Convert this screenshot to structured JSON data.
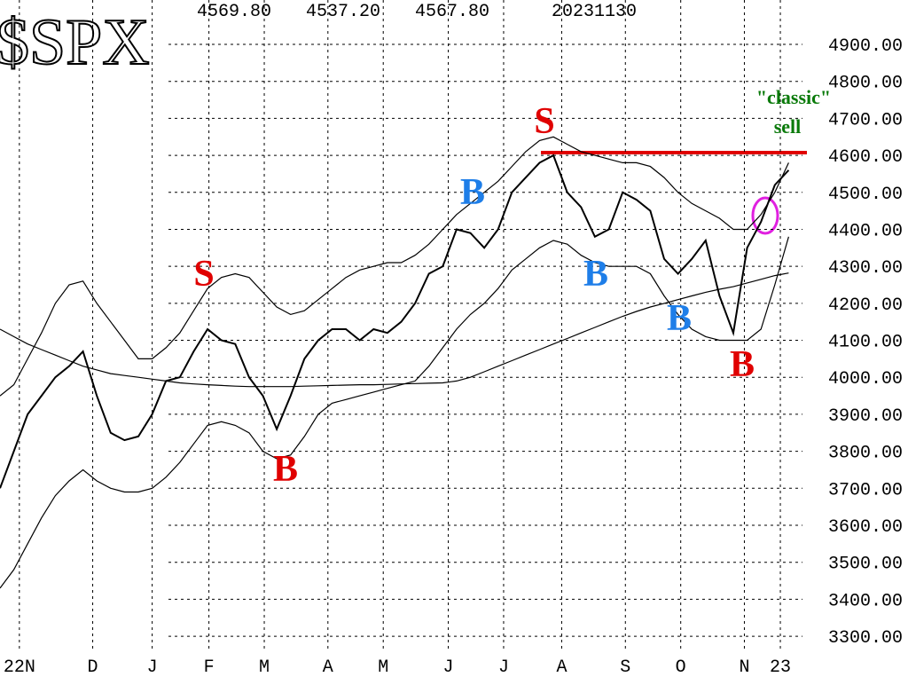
{
  "chart_data": {
    "type": "line",
    "title": "$SPX",
    "header": [
      "4569.80",
      "4537.20",
      "4567.80",
      "20231130"
    ],
    "xlim": [
      0,
      58
    ],
    "xticks": [
      {
        "value": 1.4,
        "label": "22N"
      },
      {
        "value": 6.7,
        "label": "D"
      },
      {
        "value": 11,
        "label": "J"
      },
      {
        "value": 15.1,
        "label": "F"
      },
      {
        "value": 19.1,
        "label": "M"
      },
      {
        "value": 23.7,
        "label": "A"
      },
      {
        "value": 27.7,
        "label": "M"
      },
      {
        "value": 32.4,
        "label": "J"
      },
      {
        "value": 36.4,
        "label": "J"
      },
      {
        "value": 40.6,
        "label": "A"
      },
      {
        "value": 45.2,
        "label": "S"
      },
      {
        "value": 49.2,
        "label": "O"
      },
      {
        "value": 53.8,
        "label": "N"
      },
      {
        "value": 56.4,
        "label": "23"
      }
    ],
    "ylim": [
      3245,
      5020
    ],
    "yticks": [
      {
        "value": 4900,
        "label": "4900.00"
      },
      {
        "value": 4800,
        "label": "4800.00"
      },
      {
        "value": 4700,
        "label": "4700.00"
      },
      {
        "value": 4600,
        "label": "4600.00"
      },
      {
        "value": 4500,
        "label": "4500.00"
      },
      {
        "value": 4400,
        "label": "4400.00"
      },
      {
        "value": 4300,
        "label": "4300.00"
      },
      {
        "value": 4200,
        "label": "4200.00"
      },
      {
        "value": 4100,
        "label": "4100.00"
      },
      {
        "value": 4000,
        "label": "4000.00"
      },
      {
        "value": 3900,
        "label": "3900.00"
      },
      {
        "value": 3800,
        "label": "3800.00"
      },
      {
        "value": 3700,
        "label": "3700.00"
      },
      {
        "value": 3600,
        "label": "3600.00"
      },
      {
        "value": 3500,
        "label": "3500.00"
      },
      {
        "value": 3400,
        "label": "3400.00"
      },
      {
        "value": 3300,
        "label": "3300.00"
      }
    ],
    "grid": true,
    "series": [
      {
        "color": "#000000",
        "values": [
          3700,
          3800,
          3900,
          3950,
          4000,
          4030,
          4070,
          3950,
          3850,
          3830,
          3840,
          3900,
          3990,
          4000,
          4070,
          4130,
          4100,
          4090,
          4000,
          3950,
          3860,
          3950,
          4050,
          4100,
          4130,
          4130,
          4100,
          4130,
          4120,
          4150,
          4200,
          4280,
          4300,
          4400,
          4390,
          4350,
          4400,
          4500,
          4540,
          4580,
          4600,
          4500,
          4460,
          4380,
          4400,
          4500,
          4480,
          4450,
          4320,
          4280,
          4320,
          4370,
          4220,
          4120,
          4350,
          4420,
          4520,
          4560
        ]
      },
      {
        "color": "#000000",
        "values": [
          4130,
          4110,
          4090,
          4075,
          4060,
          4045,
          4030,
          4020,
          4010,
          4005,
          4000,
          3995,
          3990,
          3985,
          3982,
          3980,
          3978,
          3976,
          3975,
          3975,
          3975,
          3975,
          3976,
          3977,
          3978,
          3979,
          3980,
          3980,
          3981,
          3982,
          3983,
          3984,
          3985,
          3990,
          4000,
          4015,
          4030,
          4045,
          4060,
          4075,
          4090,
          4105,
          4120,
          4135,
          4150,
          4165,
          4178,
          4190,
          4200,
          4210,
          4220,
          4230,
          4238,
          4245,
          4255,
          4265,
          4275,
          4282
        ]
      },
      {
        "color": "#000000",
        "values": [
          3950,
          3980,
          4050,
          4120,
          4200,
          4250,
          4260,
          4200,
          4150,
          4100,
          4050,
          4050,
          4080,
          4120,
          4180,
          4240,
          4270,
          4280,
          4270,
          4230,
          4190,
          4170,
          4180,
          4210,
          4240,
          4270,
          4290,
          4300,
          4310,
          4310,
          4330,
          4360,
          4400,
          4440,
          4470,
          4500,
          4530,
          4570,
          4610,
          4640,
          4650,
          4630,
          4610,
          4600,
          4590,
          4580,
          4580,
          4570,
          4540,
          4500,
          4470,
          4450,
          4430,
          4400,
          4400,
          4440,
          4500,
          4580
        ]
      },
      {
        "color": "#000000",
        "values": [
          3430,
          3480,
          3550,
          3620,
          3680,
          3720,
          3750,
          3720,
          3700,
          3690,
          3690,
          3700,
          3730,
          3770,
          3820,
          3870,
          3880,
          3870,
          3850,
          3800,
          3780,
          3790,
          3840,
          3900,
          3930,
          3940,
          3950,
          3960,
          3970,
          3980,
          3990,
          4030,
          4080,
          4130,
          4170,
          4200,
          4240,
          4290,
          4320,
          4350,
          4370,
          4360,
          4330,
          4310,
          4300,
          4300,
          4300,
          4280,
          4220,
          4170,
          4130,
          4110,
          4100,
          4100,
          4100,
          4130,
          4250,
          4380
        ]
      }
    ],
    "annotations": [
      {
        "text": "S",
        "color": "#e00000"
      },
      {
        "text": "B",
        "color": "#e00000"
      },
      {
        "text": "B",
        "color": "#1e7ee8"
      },
      {
        "text": "S",
        "color": "#e00000"
      },
      {
        "text": "B",
        "color": "#1e7ee8"
      },
      {
        "text": "B",
        "color": "#1e7ee8"
      },
      {
        "text": "B",
        "color": "#e00000"
      },
      {
        "text": "\"classic\"",
        "color": "#0a7a0a"
      },
      {
        "text": "sell",
        "color": "#0a7a0a"
      }
    ]
  }
}
